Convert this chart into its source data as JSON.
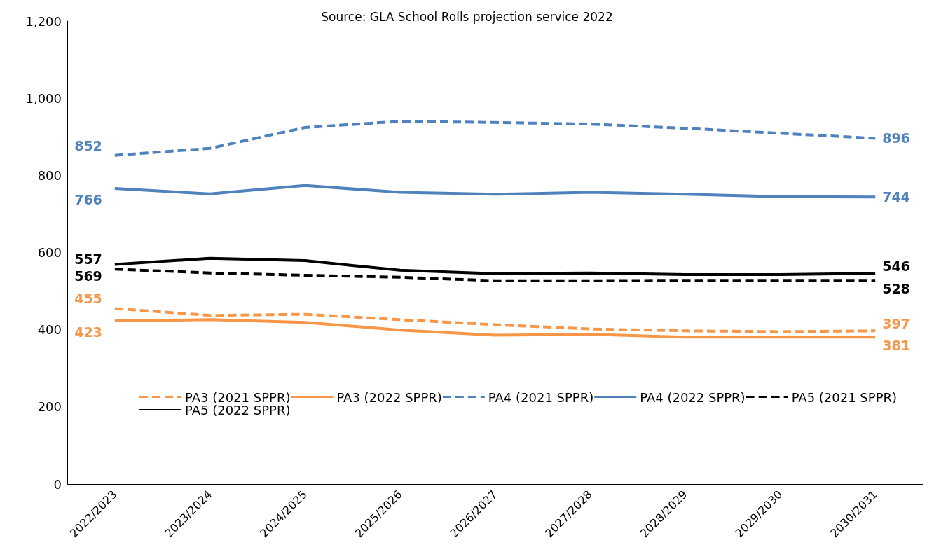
{
  "chart_data": {
    "type": "line",
    "subtitle": "Source: GLA School Rolls projection service 2022",
    "categories": [
      "2022/2023",
      "2023/2024",
      "2024/2025",
      "2025/2026",
      "2026/2027",
      "2027/2028",
      "2028/2029",
      "2029/2030",
      "2030/2031"
    ],
    "series": [
      {
        "name": "PA3 (2021 SPPR)",
        "color": "#f79646",
        "line_style": "dashed",
        "values": [
          455,
          437,
          440,
          426,
          413,
          402,
          397,
          395,
          397
        ],
        "value_labels": [
          "455",
          null,
          null,
          null,
          null,
          null,
          null,
          null,
          "397"
        ]
      },
      {
        "name": "PA3 (2022 SPPR)",
        "color": "#f79646",
        "line_style": "solid",
        "values": [
          423,
          426,
          419,
          399,
          386,
          388,
          381,
          381,
          381
        ],
        "value_labels": [
          "423",
          null,
          null,
          null,
          null,
          null,
          null,
          null,
          "381"
        ]
      },
      {
        "name": "PA4 (2021 SPPR)",
        "color": "#4f81bd",
        "line_style": "dashed",
        "values": [
          852,
          870,
          924,
          940,
          937,
          933,
          922,
          909,
          896
        ],
        "value_labels": [
          "852",
          null,
          null,
          null,
          null,
          null,
          null,
          null,
          "896"
        ]
      },
      {
        "name": "PA4 (2022 SPPR)",
        "color": "#4f81bd",
        "line_style": "solid",
        "values": [
          766,
          752,
          774,
          756,
          751,
          756,
          751,
          745,
          744
        ],
        "value_labels": [
          "766",
          null,
          null,
          null,
          null,
          null,
          null,
          null,
          "744"
        ]
      },
      {
        "name": "PA5 (2021 SPPR)",
        "color": "#000000",
        "line_style": "dashed",
        "values": [
          557,
          547,
          541,
          536,
          527,
          527,
          528,
          528,
          528
        ],
        "value_labels": [
          "557",
          null,
          null,
          null,
          null,
          null,
          null,
          null,
          "528"
        ]
      },
      {
        "name": "PA5 (2022 SPPR)",
        "color": "#000000",
        "line_style": "solid",
        "values": [
          569,
          585,
          579,
          554,
          545,
          547,
          543,
          543,
          546
        ],
        "value_labels": [
          "569",
          null,
          null,
          null,
          null,
          null,
          null,
          null,
          "546"
        ]
      }
    ],
    "ylim": [
      0,
      1200
    ],
    "yticks": [
      0,
      200,
      400,
      600,
      800,
      {
        "value": 1000,
        "label": "1,000"
      },
      {
        "value": 1200,
        "label": "1,200"
      }
    ],
    "grid": false,
    "legend": "bottom",
    "marker": "none"
  }
}
